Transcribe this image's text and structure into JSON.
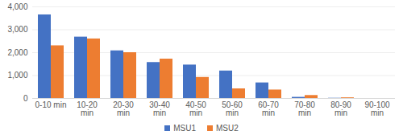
{
  "chart_data": {
    "type": "bar",
    "categories": [
      "0-10 min",
      "10-20 min",
      "20-30 min",
      "30-40 min",
      "40-50 min",
      "50-60 min",
      "60-70 min",
      "70-80 min",
      "80-90 min",
      "90-100 min"
    ],
    "series": [
      {
        "name": "MSU1",
        "color": "#4472c4",
        "values": [
          3650,
          2680,
          2080,
          1570,
          1460,
          1200,
          680,
          50,
          10,
          0
        ]
      },
      {
        "name": "MSU2",
        "color": "#ed7d31",
        "values": [
          2300,
          2600,
          2000,
          1720,
          920,
          420,
          370,
          130,
          30,
          0
        ]
      }
    ],
    "ylim": [
      0,
      4000
    ],
    "yticks": [
      0,
      1000,
      2000,
      3000,
      4000
    ],
    "grid": true,
    "legend": "bottom"
  }
}
